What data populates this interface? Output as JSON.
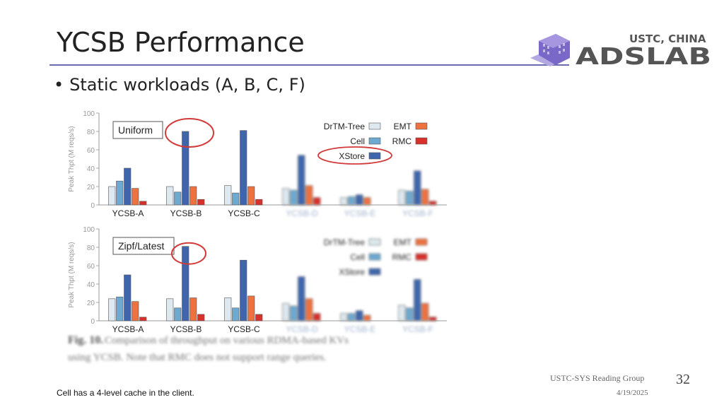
{
  "slide": {
    "title": "YCSB Performance",
    "bullet": "Static workloads (A, B, C, F)",
    "note": "Cell has a 4-level cache in the client.",
    "footer_group": "USTC-SYS Reading Group",
    "footer_date": "4/19/2025",
    "page_number": "32"
  },
  "logo": {
    "top_text": "USTC, CHINA",
    "main_text": "ADSLAB",
    "color": "#7a68c8"
  },
  "caption": {
    "fig_label": "Fig. 10.",
    "text_line1": "Comparison of throughput on various RDMA-based KVs",
    "text_line2": "using YCSB. Note that RMC does not support range queries."
  },
  "chart_data": [
    {
      "type": "bar",
      "panel_label": "Uniform",
      "ylabel": "Peak Thpt (M reqs/s)",
      "ylim": [
        0,
        100
      ],
      "yticks": [
        0,
        20,
        40,
        60,
        80,
        100
      ],
      "categories": [
        "YCSB-A",
        "YCSB-B",
        "YCSB-C",
        "YCSB-D",
        "YCSB-E",
        "YCSB-F"
      ],
      "series": [
        {
          "name": "DrTM-Tree",
          "color": "#dde9ef",
          "values": [
            20,
            20,
            21,
            18,
            8,
            16
          ]
        },
        {
          "name": "Cell",
          "color": "#6ea9d0",
          "values": [
            26,
            14,
            13,
            16,
            9,
            15
          ]
        },
        {
          "name": "XStore",
          "color": "#3f66ad",
          "values": [
            40,
            80,
            81,
            54,
            11,
            37
          ]
        },
        {
          "name": "EMT",
          "color": "#ee7140",
          "values": [
            18,
            20,
            20,
            21,
            8,
            17
          ]
        },
        {
          "name": "RMC",
          "color": "#d8302b",
          "values": [
            4,
            6,
            6,
            8,
            0,
            4
          ]
        }
      ],
      "legend_position": "top-right",
      "annotation": "",
      "highlight": "YCSB-B"
    },
    {
      "type": "bar",
      "panel_label": "Zipf/Latest",
      "ylabel": "Peak Thpt (M reqs/s)",
      "ylim": [
        0,
        100
      ],
      "yticks": [
        0,
        20,
        40,
        60,
        80,
        100
      ],
      "categories": [
        "YCSB-A",
        "YCSB-B",
        "YCSB-C",
        "YCSB-D",
        "YCSB-E",
        "YCSB-F"
      ],
      "series": [
        {
          "name": "DrTM-Tree",
          "color": "#dde9ef",
          "values": [
            24,
            24,
            25,
            19,
            8,
            17
          ]
        },
        {
          "name": "Cell",
          "color": "#6ea9d0",
          "values": [
            26,
            14,
            14,
            16,
            8,
            14
          ]
        },
        {
          "name": "XStore",
          "color": "#3f66ad",
          "values": [
            50,
            81,
            66,
            48,
            11,
            45
          ]
        },
        {
          "name": "EMT",
          "color": "#ee7140",
          "values": [
            21,
            25,
            27,
            24,
            6,
            19
          ]
        },
        {
          "name": "RMC",
          "color": "#d8302b",
          "values": [
            4,
            7,
            7,
            8,
            0,
            4
          ]
        }
      ],
      "legend_position": "top-right",
      "annotation": "",
      "highlight": "YCSB-B"
    }
  ]
}
